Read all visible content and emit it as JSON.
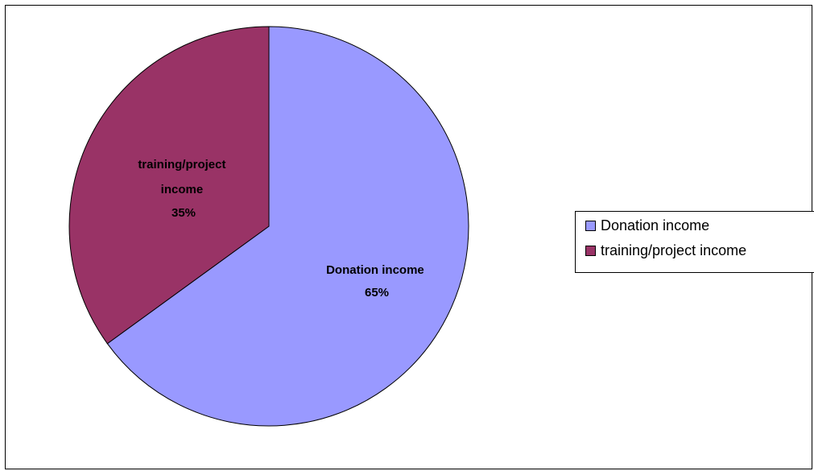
{
  "chart_data": {
    "type": "pie",
    "title": "",
    "slices": [
      {
        "label": "Donation income",
        "value": 65,
        "percent_label": "65%",
        "color": "#9999FF"
      },
      {
        "label": "training/project income",
        "value": 35,
        "percent_label": "35%",
        "color": "#993366"
      }
    ],
    "data_labels": {
      "donation": {
        "lines": [
          "Donation income",
          "65%"
        ]
      },
      "training": {
        "lines": [
          "training/project",
          "income",
          "35%"
        ]
      }
    },
    "legend": {
      "placement": "right",
      "items": [
        "Donation income",
        "training/project income"
      ]
    },
    "start_angle": "12 o'clock",
    "direction": "clockwise"
  }
}
